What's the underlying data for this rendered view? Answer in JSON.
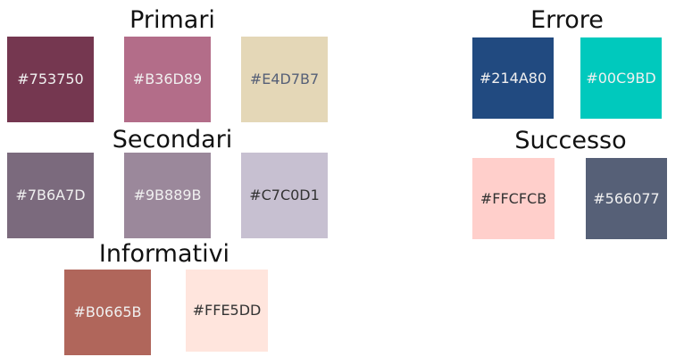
{
  "groups": {
    "primari": {
      "title": "Primari",
      "swatches": [
        {
          "label": "#753750",
          "color": "#753750",
          "text_color": "#f0f0f0"
        },
        {
          "label": "#B36D89",
          "color": "#B36D89",
          "text_color": "#f0f0f0"
        },
        {
          "label": "#E4D7B7",
          "color": "#E4D7B7",
          "text_color": "#566077"
        }
      ]
    },
    "secondari": {
      "title": "Secondari",
      "swatches": [
        {
          "label": "#7B6A7D",
          "color": "#7B6A7D",
          "text_color": "#f0f0f0"
        },
        {
          "label": "#9B889B",
          "color": "#9B889B",
          "text_color": "#f0f0f0"
        },
        {
          "label": "#C7C0D1",
          "color": "#C7C0D1",
          "text_color": "#333333"
        }
      ]
    },
    "informativi": {
      "title": "Informativi",
      "swatches": [
        {
          "label": "#B0665B",
          "color": "#B0665B",
          "text_color": "#f0f0f0"
        },
        {
          "label": "#FFE5DD",
          "color": "#FFE5DD",
          "text_color": "#333333"
        }
      ]
    },
    "errore": {
      "title": "Errore",
      "swatches": [
        {
          "label": "#214A80",
          "color": "#214A80",
          "text_color": "#f0f0f0"
        },
        {
          "label": "#00C9BD",
          "color": "#00C9BD",
          "text_color": "#f0f0f0"
        }
      ]
    },
    "successo": {
      "title": "Successo",
      "swatches": [
        {
          "label": "#FFCFCB",
          "color": "#FFCFCB",
          "text_color": "#333333"
        },
        {
          "label": "#566077",
          "color": "#566077",
          "text_color": "#f0f0f0"
        }
      ]
    }
  }
}
